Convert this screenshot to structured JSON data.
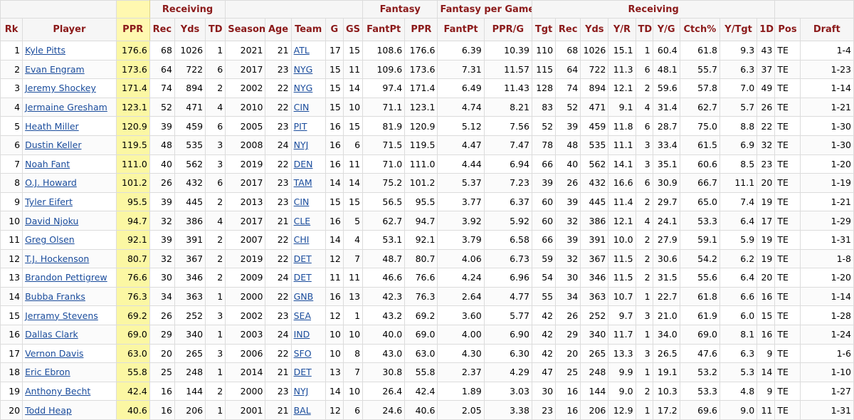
{
  "groups": [
    "Receiving",
    "Fantasy",
    "Fantasy per Game",
    "Receiving"
  ],
  "headers": [
    "Rk",
    "Player",
    "PPR",
    "Rec",
    "Yds",
    "TD",
    "Season",
    "Age",
    "Team",
    "G",
    "GS",
    "FantPt",
    "PPR",
    "FantPt",
    "PPR/G",
    "Tgt",
    "Rec",
    "Yds",
    "Y/R",
    "TD",
    "Y/G",
    "Ctch%",
    "Y/Tgt",
    "1D",
    "Pos",
    "Draft"
  ],
  "rows": [
    [
      "1",
      "Kyle Pitts",
      "176.6",
      "68",
      "1026",
      "1",
      "2021",
      "21",
      "ATL",
      "17",
      "15",
      "108.6",
      "176.6",
      "6.39",
      "10.39",
      "110",
      "68",
      "1026",
      "15.1",
      "1",
      "60.4",
      "61.8",
      "9.3",
      "43",
      "TE",
      "1-4"
    ],
    [
      "2",
      "Evan Engram",
      "173.6",
      "64",
      "722",
      "6",
      "2017",
      "23",
      "NYG",
      "15",
      "11",
      "109.6",
      "173.6",
      "7.31",
      "11.57",
      "115",
      "64",
      "722",
      "11.3",
      "6",
      "48.1",
      "55.7",
      "6.3",
      "37",
      "TE",
      "1-23"
    ],
    [
      "3",
      "Jeremy Shockey",
      "171.4",
      "74",
      "894",
      "2",
      "2002",
      "22",
      "NYG",
      "15",
      "14",
      "97.4",
      "171.4",
      "6.49",
      "11.43",
      "128",
      "74",
      "894",
      "12.1",
      "2",
      "59.6",
      "57.8",
      "7.0",
      "49",
      "TE",
      "1-14"
    ],
    [
      "4",
      "Jermaine Gresham",
      "123.1",
      "52",
      "471",
      "4",
      "2010",
      "22",
      "CIN",
      "15",
      "10",
      "71.1",
      "123.1",
      "4.74",
      "8.21",
      "83",
      "52",
      "471",
      "9.1",
      "4",
      "31.4",
      "62.7",
      "5.7",
      "26",
      "TE",
      "1-21"
    ],
    [
      "5",
      "Heath Miller",
      "120.9",
      "39",
      "459",
      "6",
      "2005",
      "23",
      "PIT",
      "16",
      "15",
      "81.9",
      "120.9",
      "5.12",
      "7.56",
      "52",
      "39",
      "459",
      "11.8",
      "6",
      "28.7",
      "75.0",
      "8.8",
      "22",
      "TE",
      "1-30"
    ],
    [
      "6",
      "Dustin Keller",
      "119.5",
      "48",
      "535",
      "3",
      "2008",
      "24",
      "NYJ",
      "16",
      "6",
      "71.5",
      "119.5",
      "4.47",
      "7.47",
      "78",
      "48",
      "535",
      "11.1",
      "3",
      "33.4",
      "61.5",
      "6.9",
      "32",
      "TE",
      "1-30"
    ],
    [
      "7",
      "Noah Fant",
      "111.0",
      "40",
      "562",
      "3",
      "2019",
      "22",
      "DEN",
      "16",
      "11",
      "71.0",
      "111.0",
      "4.44",
      "6.94",
      "66",
      "40",
      "562",
      "14.1",
      "3",
      "35.1",
      "60.6",
      "8.5",
      "23",
      "TE",
      "1-20"
    ],
    [
      "8",
      "O.J. Howard",
      "101.2",
      "26",
      "432",
      "6",
      "2017",
      "23",
      "TAM",
      "14",
      "14",
      "75.2",
      "101.2",
      "5.37",
      "7.23",
      "39",
      "26",
      "432",
      "16.6",
      "6",
      "30.9",
      "66.7",
      "11.1",
      "20",
      "TE",
      "1-19"
    ],
    [
      "9",
      "Tyler Eifert",
      "95.5",
      "39",
      "445",
      "2",
      "2013",
      "23",
      "CIN",
      "15",
      "15",
      "56.5",
      "95.5",
      "3.77",
      "6.37",
      "60",
      "39",
      "445",
      "11.4",
      "2",
      "29.7",
      "65.0",
      "7.4",
      "19",
      "TE",
      "1-21"
    ],
    [
      "10",
      "David Njoku",
      "94.7",
      "32",
      "386",
      "4",
      "2017",
      "21",
      "CLE",
      "16",
      "5",
      "62.7",
      "94.7",
      "3.92",
      "5.92",
      "60",
      "32",
      "386",
      "12.1",
      "4",
      "24.1",
      "53.3",
      "6.4",
      "17",
      "TE",
      "1-29"
    ],
    [
      "11",
      "Greg Olsen",
      "92.1",
      "39",
      "391",
      "2",
      "2007",
      "22",
      "CHI",
      "14",
      "4",
      "53.1",
      "92.1",
      "3.79",
      "6.58",
      "66",
      "39",
      "391",
      "10.0",
      "2",
      "27.9",
      "59.1",
      "5.9",
      "19",
      "TE",
      "1-31"
    ],
    [
      "12",
      "T.J. Hockenson",
      "80.7",
      "32",
      "367",
      "2",
      "2019",
      "22",
      "DET",
      "12",
      "7",
      "48.7",
      "80.7",
      "4.06",
      "6.73",
      "59",
      "32",
      "367",
      "11.5",
      "2",
      "30.6",
      "54.2",
      "6.2",
      "19",
      "TE",
      "1-8"
    ],
    [
      "13",
      "Brandon Pettigrew",
      "76.6",
      "30",
      "346",
      "2",
      "2009",
      "24",
      "DET",
      "11",
      "11",
      "46.6",
      "76.6",
      "4.24",
      "6.96",
      "54",
      "30",
      "346",
      "11.5",
      "2",
      "31.5",
      "55.6",
      "6.4",
      "20",
      "TE",
      "1-20"
    ],
    [
      "14",
      "Bubba Franks",
      "76.3",
      "34",
      "363",
      "1",
      "2000",
      "22",
      "GNB",
      "16",
      "13",
      "42.3",
      "76.3",
      "2.64",
      "4.77",
      "55",
      "34",
      "363",
      "10.7",
      "1",
      "22.7",
      "61.8",
      "6.6",
      "16",
      "TE",
      "1-14"
    ],
    [
      "15",
      "Jerramy Stevens",
      "69.2",
      "26",
      "252",
      "3",
      "2002",
      "23",
      "SEA",
      "12",
      "1",
      "43.2",
      "69.2",
      "3.60",
      "5.77",
      "42",
      "26",
      "252",
      "9.7",
      "3",
      "21.0",
      "61.9",
      "6.0",
      "15",
      "TE",
      "1-28"
    ],
    [
      "16",
      "Dallas Clark",
      "69.0",
      "29",
      "340",
      "1",
      "2003",
      "24",
      "IND",
      "10",
      "10",
      "40.0",
      "69.0",
      "4.00",
      "6.90",
      "42",
      "29",
      "340",
      "11.7",
      "1",
      "34.0",
      "69.0",
      "8.1",
      "16",
      "TE",
      "1-24"
    ],
    [
      "17",
      "Vernon Davis",
      "63.0",
      "20",
      "265",
      "3",
      "2006",
      "22",
      "SFO",
      "10",
      "8",
      "43.0",
      "63.0",
      "4.30",
      "6.30",
      "42",
      "20",
      "265",
      "13.3",
      "3",
      "26.5",
      "47.6",
      "6.3",
      "9",
      "TE",
      "1-6"
    ],
    [
      "18",
      "Eric Ebron",
      "55.8",
      "25",
      "248",
      "1",
      "2014",
      "21",
      "DET",
      "13",
      "7",
      "30.8",
      "55.8",
      "2.37",
      "4.29",
      "47",
      "25",
      "248",
      "9.9",
      "1",
      "19.1",
      "53.2",
      "5.3",
      "14",
      "TE",
      "1-10"
    ],
    [
      "19",
      "Anthony Becht",
      "42.4",
      "16",
      "144",
      "2",
      "2000",
      "23",
      "NYJ",
      "14",
      "10",
      "26.4",
      "42.4",
      "1.89",
      "3.03",
      "30",
      "16",
      "144",
      "9.0",
      "2",
      "10.3",
      "53.3",
      "4.8",
      "9",
      "TE",
      "1-27"
    ],
    [
      "20",
      "Todd Heap",
      "40.6",
      "16",
      "206",
      "1",
      "2001",
      "21",
      "BAL",
      "12",
      "6",
      "24.6",
      "40.6",
      "2.05",
      "3.38",
      "23",
      "16",
      "206",
      "12.9",
      "1",
      "17.2",
      "69.6",
      "9.0",
      "11",
      "TE",
      "1-31"
    ]
  ]
}
